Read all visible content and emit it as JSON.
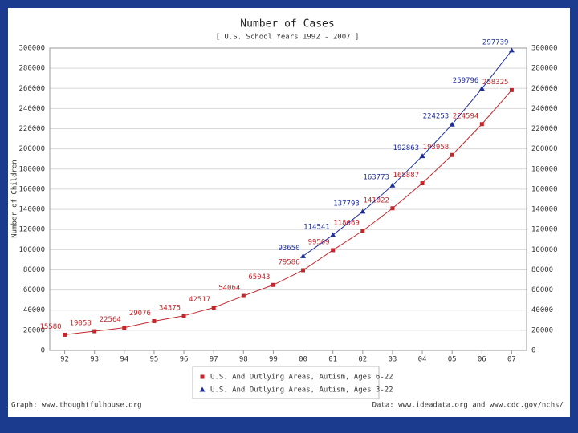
{
  "chart_data": {
    "type": "line",
    "title": "Number of Cases",
    "subtitle": "[ U.S. School Years 1992 - 2007 ]",
    "y_label": "Number of Children",
    "categories": [
      "92",
      "93",
      "94",
      "95",
      "96",
      "97",
      "98",
      "99",
      "00",
      "01",
      "02",
      "03",
      "04",
      "05",
      "06",
      "07"
    ],
    "series": [
      {
        "name": "U.S. And Outlying Areas, Autism, Ages 6-22",
        "color": "#c0282d",
        "marker": "square",
        "values": [
          15580,
          19058,
          22564,
          29076,
          34375,
          42517,
          54064,
          65043,
          79586,
          99509,
          118669,
          141022,
          165887,
          193958,
          224594,
          258325
        ]
      },
      {
        "name": "U.S. And Outlying Areas, Autism, Ages 3-22",
        "color": "#1f2f9a",
        "marker": "triangle",
        "values": [
          null,
          null,
          null,
          null,
          null,
          null,
          null,
          null,
          93650,
          114541,
          137793,
          163773,
          192863,
          224253,
          259796,
          297739
        ]
      }
    ],
    "ylim": [
      0,
      300000
    ],
    "yticks": [
      0,
      20000,
      40000,
      60000,
      80000,
      100000,
      120000,
      140000,
      160000,
      180000,
      200000,
      220000,
      240000,
      260000,
      280000,
      300000
    ],
    "grid": true,
    "footer_left": "Graph: www.thoughtfulhouse.org",
    "footer_right": "Data: www.ideadata.org and www.cdc.gov/nchs/"
  }
}
